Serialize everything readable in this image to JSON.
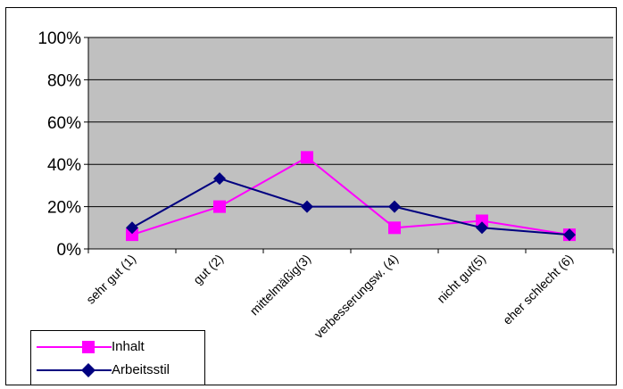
{
  "chart_data": {
    "type": "line",
    "categories": [
      "sehr gut (1)",
      "gut (2)",
      "mittelmäßig(3)",
      "verbesserungsw. (4)",
      "nicht gut(5)",
      "eher schlecht (6)"
    ],
    "y_ticks": [
      "0%",
      "20%",
      "40%",
      "60%",
      "80%",
      "100%"
    ],
    "ylim": [
      0,
      100
    ],
    "y_unit": "%",
    "grid": true,
    "legend_position": "bottom-left",
    "plot_background": "#c0c0c0",
    "series": [
      {
        "name": "Inhalt",
        "values": [
          6.7,
          20,
          43.3,
          10,
          13.3,
          6.7
        ],
        "color": "#ff00ff",
        "marker": "square"
      },
      {
        "name": "Arbeitsstil",
        "values": [
          10,
          33.3,
          20,
          20,
          10,
          6.7
        ],
        "color": "#000080",
        "marker": "diamond"
      }
    ]
  }
}
